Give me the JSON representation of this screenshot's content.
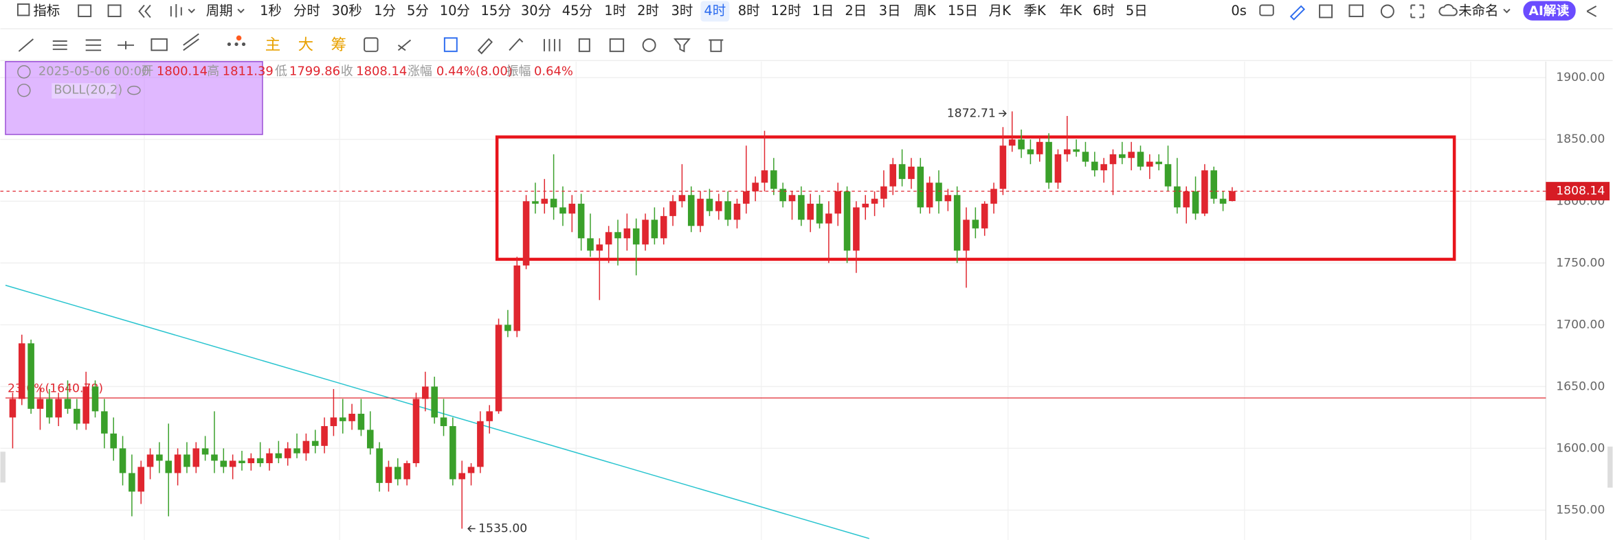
{
  "toolbar": {
    "indicator": "指标",
    "period": "周期",
    "intervals": [
      "1秒",
      "分时",
      "30秒",
      "1分",
      "5分",
      "10分",
      "15分",
      "30分",
      "45分",
      "1时",
      "2时",
      "3时",
      "4时",
      "8时",
      "12时",
      "1日",
      "2日",
      "3日",
      "周K",
      "15日",
      "月K",
      "季K",
      "年K",
      "6时",
      "5日"
    ],
    "active": "4时",
    "timer": "0s",
    "name": "未命名",
    "ai": "AI解读",
    "overlays": [
      "主",
      "大",
      "筹"
    ]
  },
  "chart_data": {
    "type": "candlestick",
    "info": {
      "date": "2025-05-06 00:00",
      "open_label": "开",
      "high_label": "高",
      "low_label": "低",
      "close_label": "收",
      "change_label": "涨幅",
      "change": "0.44%(8.00)",
      "amplitude_label": "振幅",
      "amplitude": "0.64%"
    },
    "indicator": "BOLL(20,2)",
    "up_color": "#e0262f",
    "down_color": "#3aa02a",
    "ylim": [
      1525,
      1913
    ],
    "yticks": [
      {
        "value": 1550,
        "label": "1550.00"
      },
      {
        "value": 1600,
        "label": "1600.00"
      },
      {
        "value": 1650,
        "label": "1650.00"
      },
      {
        "value": 1700,
        "label": "1700.00"
      },
      {
        "value": 1750,
        "label": "1750.00"
      },
      {
        "value": 1800,
        "label": "1800.00"
      },
      {
        "value": 1850,
        "label": "1850.00"
      },
      {
        "value": 1900,
        "label": "1900.00"
      }
    ],
    "grid": true,
    "fib_line": {
      "value": 1640.78,
      "label": "23.6%(1640.78)"
    },
    "box": {
      "top": 1852,
      "bottom": 1753
    },
    "trendline": {
      "start": 1732,
      "end": 1527
    },
    "high_annotation": {
      "value": 1872.71,
      "label": "1872.71"
    },
    "low_annotation": {
      "value": 1535,
      "label": "1535.00"
    },
    "candles": [
      [
        1625,
        1645,
        1600,
        1640
      ],
      [
        1640,
        1692,
        1635,
        1685
      ],
      [
        1685,
        1688,
        1628,
        1632
      ],
      [
        1632,
        1650,
        1615,
        1640
      ],
      [
        1640,
        1648,
        1620,
        1625
      ],
      [
        1625,
        1645,
        1618,
        1640
      ],
      [
        1640,
        1655,
        1628,
        1632
      ],
      [
        1632,
        1640,
        1615,
        1620
      ],
      [
        1620,
        1662,
        1615,
        1650
      ],
      [
        1650,
        1655,
        1625,
        1630
      ],
      [
        1630,
        1640,
        1600,
        1612
      ],
      [
        1612,
        1625,
        1590,
        1600
      ],
      [
        1600,
        1610,
        1570,
        1580
      ],
      [
        1580,
        1595,
        1545,
        1565
      ],
      [
        1565,
        1590,
        1555,
        1585
      ],
      [
        1585,
        1600,
        1575,
        1595
      ],
      [
        1595,
        1605,
        1580,
        1590
      ],
      [
        1590,
        1620,
        1545,
        1580
      ],
      [
        1580,
        1600,
        1570,
        1595
      ],
      [
        1595,
        1605,
        1580,
        1585
      ],
      [
        1585,
        1605,
        1580,
        1600
      ],
      [
        1600,
        1610,
        1590,
        1595
      ],
      [
        1595,
        1630,
        1580,
        1590
      ],
      [
        1590,
        1600,
        1580,
        1585
      ],
      [
        1585,
        1595,
        1575,
        1590
      ],
      [
        1590,
        1598,
        1582,
        1588
      ],
      [
        1588,
        1596,
        1582,
        1592
      ],
      [
        1592,
        1605,
        1585,
        1588
      ],
      [
        1588,
        1600,
        1582,
        1596
      ],
      [
        1596,
        1606,
        1588,
        1592
      ],
      [
        1592,
        1605,
        1586,
        1600
      ],
      [
        1600,
        1612,
        1592,
        1596
      ],
      [
        1596,
        1612,
        1590,
        1606
      ],
      [
        1606,
        1615,
        1596,
        1602
      ],
      [
        1602,
        1625,
        1596,
        1618
      ],
      [
        1618,
        1648,
        1610,
        1625
      ],
      [
        1625,
        1640,
        1612,
        1622
      ],
      [
        1622,
        1636,
        1615,
        1628
      ],
      [
        1628,
        1640,
        1610,
        1615
      ],
      [
        1615,
        1630,
        1595,
        1600
      ],
      [
        1600,
        1605,
        1565,
        1572
      ],
      [
        1572,
        1590,
        1565,
        1585
      ],
      [
        1585,
        1592,
        1570,
        1575
      ],
      [
        1575,
        1590,
        1570,
        1588
      ],
      [
        1588,
        1645,
        1585,
        1640
      ],
      [
        1640,
        1662,
        1630,
        1650
      ],
      [
        1650,
        1658,
        1620,
        1625
      ],
      [
        1625,
        1640,
        1610,
        1618
      ],
      [
        1618,
        1625,
        1570,
        1575
      ],
      [
        1575,
        1590,
        1535,
        1580
      ],
      [
        1580,
        1588,
        1570,
        1585
      ],
      [
        1585,
        1630,
        1580,
        1622
      ],
      [
        1622,
        1635,
        1612,
        1630
      ],
      [
        1630,
        1705,
        1628,
        1700
      ],
      [
        1700,
        1712,
        1690,
        1695
      ],
      [
        1695,
        1755,
        1690,
        1748
      ],
      [
        1748,
        1805,
        1745,
        1800
      ],
      [
        1800,
        1815,
        1790,
        1798
      ],
      [
        1798,
        1818,
        1790,
        1802
      ],
      [
        1802,
        1838,
        1785,
        1795
      ],
      [
        1795,
        1812,
        1780,
        1790
      ],
      [
        1790,
        1805,
        1775,
        1798
      ],
      [
        1798,
        1806,
        1760,
        1770
      ],
      [
        1770,
        1790,
        1755,
        1760
      ],
      [
        1760,
        1770,
        1720,
        1765
      ],
      [
        1765,
        1780,
        1750,
        1775
      ],
      [
        1775,
        1785,
        1748,
        1770
      ],
      [
        1770,
        1790,
        1760,
        1778
      ],
      [
        1778,
        1786,
        1740,
        1765
      ],
      [
        1765,
        1790,
        1760,
        1785
      ],
      [
        1785,
        1795,
        1765,
        1770
      ],
      [
        1770,
        1795,
        1765,
        1788
      ],
      [
        1788,
        1805,
        1780,
        1800
      ],
      [
        1800,
        1830,
        1795,
        1805
      ],
      [
        1805,
        1812,
        1775,
        1780
      ],
      [
        1780,
        1808,
        1775,
        1802
      ],
      [
        1802,
        1810,
        1788,
        1792
      ],
      [
        1792,
        1806,
        1785,
        1800
      ],
      [
        1800,
        1808,
        1780,
        1785
      ],
      [
        1785,
        1802,
        1778,
        1798
      ],
      [
        1798,
        1845,
        1790,
        1808
      ],
      [
        1808,
        1820,
        1800,
        1815
      ],
      [
        1815,
        1857,
        1808,
        1825
      ],
      [
        1825,
        1835,
        1805,
        1810
      ],
      [
        1810,
        1815,
        1795,
        1800
      ],
      [
        1800,
        1808,
        1785,
        1805
      ],
      [
        1805,
        1812,
        1780,
        1785
      ],
      [
        1785,
        1806,
        1775,
        1798
      ],
      [
        1798,
        1805,
        1778,
        1782
      ],
      [
        1782,
        1800,
        1750,
        1790
      ],
      [
        1790,
        1815,
        1780,
        1808
      ],
      [
        1808,
        1812,
        1750,
        1760
      ],
      [
        1760,
        1800,
        1742,
        1795
      ],
      [
        1795,
        1805,
        1785,
        1798
      ],
      [
        1798,
        1808,
        1788,
        1802
      ],
      [
        1802,
        1825,
        1795,
        1812
      ],
      [
        1812,
        1835,
        1805,
        1830
      ],
      [
        1830,
        1842,
        1812,
        1818
      ],
      [
        1818,
        1835,
        1810,
        1828
      ],
      [
        1828,
        1835,
        1790,
        1795
      ],
      [
        1795,
        1820,
        1790,
        1815
      ],
      [
        1815,
        1825,
        1790,
        1800
      ],
      [
        1800,
        1810,
        1792,
        1805
      ],
      [
        1805,
        1812,
        1750,
        1760
      ],
      [
        1760,
        1795,
        1730,
        1785
      ],
      [
        1785,
        1795,
        1770,
        1778
      ],
      [
        1778,
        1800,
        1772,
        1798
      ],
      [
        1798,
        1815,
        1790,
        1810
      ],
      [
        1810,
        1860,
        1805,
        1845
      ],
      [
        1845,
        1872.71,
        1840,
        1850
      ],
      [
        1850,
        1858,
        1835,
        1842
      ],
      [
        1842,
        1850,
        1830,
        1838
      ],
      [
        1838,
        1852,
        1832,
        1848
      ],
      [
        1848,
        1855,
        1810,
        1815
      ],
      [
        1815,
        1842,
        1810,
        1838
      ],
      [
        1838,
        1869,
        1832,
        1842
      ],
      [
        1842,
        1850,
        1836,
        1840
      ],
      [
        1840,
        1848,
        1828,
        1832
      ],
      [
        1832,
        1840,
        1820,
        1825
      ],
      [
        1825,
        1835,
        1815,
        1830
      ],
      [
        1830,
        1842,
        1805,
        1838
      ],
      [
        1838,
        1848,
        1830,
        1835
      ],
      [
        1835,
        1848,
        1825,
        1840
      ],
      [
        1840,
        1845,
        1825,
        1828
      ],
      [
        1828,
        1838,
        1818,
        1832
      ],
      [
        1832,
        1838,
        1825,
        1830
      ],
      [
        1830,
        1845,
        1808,
        1812
      ],
      [
        1812,
        1835,
        1790,
        1795
      ],
      [
        1795,
        1812,
        1782,
        1808
      ],
      [
        1808,
        1820,
        1785,
        1790
      ],
      [
        1790,
        1830,
        1788,
        1825
      ],
      [
        1825,
        1828,
        1798,
        1802
      ],
      [
        1802,
        1808,
        1792,
        1798
      ],
      [
        1800.14,
        1811.39,
        1799.86,
        1808.14
      ]
    ]
  }
}
